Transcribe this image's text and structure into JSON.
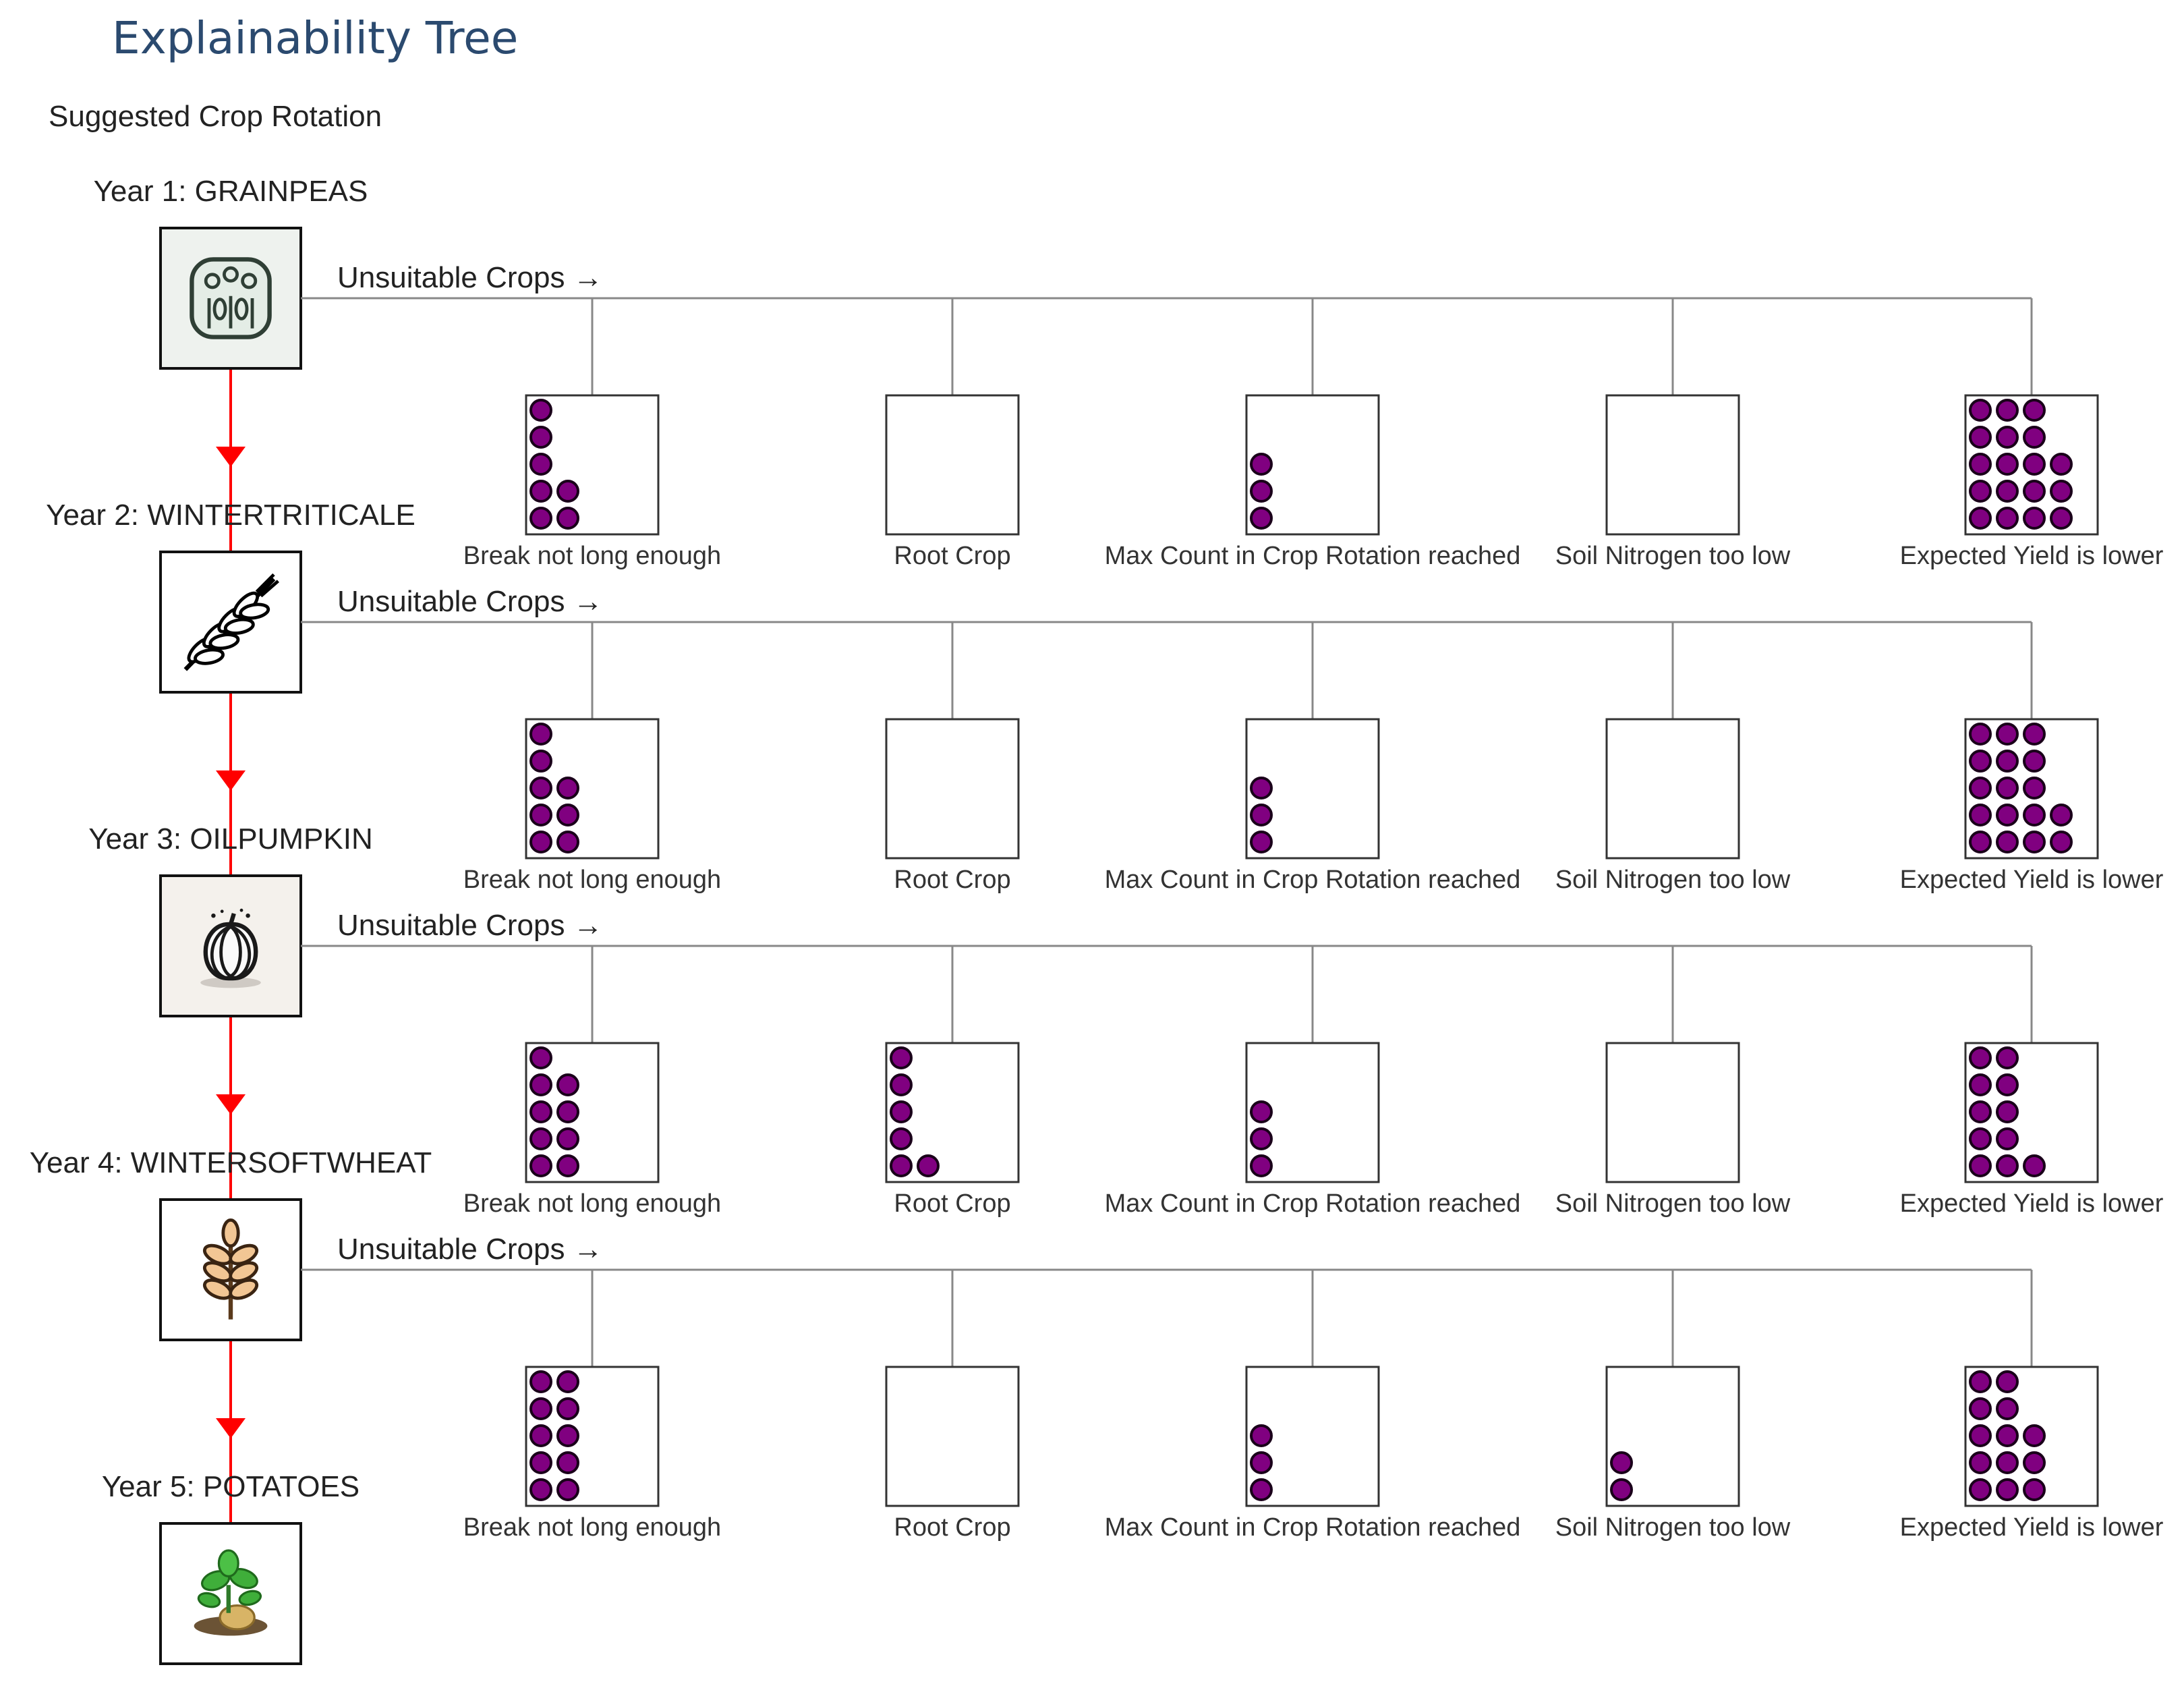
{
  "title": "Explainability Tree",
  "subtitle": "Suggested Crop Rotation",
  "branch_label": "Unsuitable Crops →",
  "categories": [
    "Break not long enough",
    "Root Crop",
    "Max Count in Crop Rotation reached",
    "Soil Nitrogen too low",
    "Expected Yield is lower"
  ],
  "colors": {
    "dot_fill": "#800080",
    "dot_stroke": "#1a001a",
    "arrow": "#ff0000",
    "line": "#888888",
    "box_border": "#333333",
    "crop_box_border": "#111111"
  },
  "years": [
    {
      "label": "Year 1: GRAINPEAS",
      "icon": "grainpeas-icon",
      "dots": [
        [
          1,
          1,
          1,
          2,
          2
        ],
        [],
        [
          1,
          1,
          1
        ],
        [],
        [
          3,
          3,
          4,
          4,
          4
        ]
      ]
    },
    {
      "label": "Year 2: WINTERTRITICALE",
      "icon": "wheat-stalk-icon",
      "dots": [
        [
          1,
          1,
          2,
          2,
          2
        ],
        [],
        [
          1,
          1,
          1
        ],
        [],
        [
          3,
          3,
          3,
          4,
          4
        ]
      ]
    },
    {
      "label": "Year 3: OILPUMPKIN",
      "icon": "pumpkin-icon",
      "dots": [
        [
          1,
          2,
          2,
          2,
          2
        ],
        [
          1,
          1,
          1,
          1,
          2
        ],
        [
          1,
          1,
          1
        ],
        [],
        [
          2,
          2,
          2,
          2,
          3
        ]
      ]
    },
    {
      "label": "Year 4: WINTERSOFTWHEAT",
      "icon": "wheat-ear-icon",
      "dots": [
        [
          2,
          2,
          2,
          2,
          2
        ],
        [],
        [
          1,
          1,
          1
        ],
        [
          1,
          1
        ],
        [
          2,
          2,
          3,
          3,
          3
        ]
      ]
    },
    {
      "label": "Year 5: POTATOES",
      "icon": "potato-plant-icon",
      "dots": null
    }
  ]
}
